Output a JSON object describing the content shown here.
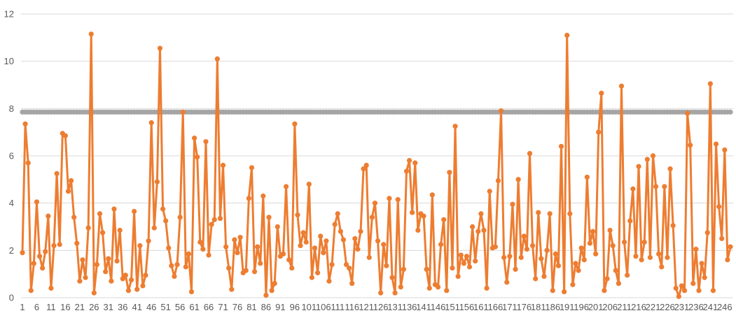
{
  "chart_data": {
    "type": "line",
    "title": "",
    "xlabel": "",
    "ylabel": "",
    "ylim": [
      0,
      12
    ],
    "y_ticks": [
      0,
      2,
      4,
      6,
      8,
      10,
      12
    ],
    "x_range": [
      1,
      249
    ],
    "x_tick_start": 1,
    "x_tick_step": 5,
    "grid": "horizontal",
    "legend": "none",
    "colors": {
      "series": "#ED7D31",
      "threshold": "#A5A5A5",
      "grid": "#D9D9D9",
      "text": "#595959"
    },
    "series": [
      {
        "values": [
          1.9,
          7.35,
          5.7,
          0.3,
          1.45,
          4.05,
          1.75,
          1.25,
          1.95,
          3.45,
          0.4,
          2.2,
          5.25,
          2.25,
          6.95,
          6.85,
          4.5,
          4.95,
          3.4,
          2.3,
          0.7,
          1.6,
          0.85,
          2.95,
          11.15,
          0.2,
          1.4,
          3.55,
          2.75,
          1.1,
          1.65,
          0.7,
          3.75,
          1.55,
          2.85,
          0.8,
          0.95,
          0.3,
          0.75,
          3.65,
          0.35,
          2.2,
          0.5,
          0.95,
          2.4,
          7.4,
          2.95,
          4.9,
          10.55,
          3.75,
          3.25,
          2.1,
          1.35,
          0.9,
          1.4,
          3.4,
          7.85,
          1.3,
          1.85,
          0.25,
          6.75,
          5.95,
          2.35,
          2.05,
          6.6,
          1.8,
          3.1,
          3.3,
          10.1,
          3.35,
          5.6,
          2.15,
          1.25,
          0.35,
          2.45,
          1.9,
          2.55,
          1.05,
          1.15,
          4.2,
          5.5,
          1.1,
          2.15,
          1.45,
          4.3,
          0.1,
          3.4,
          0.3,
          0.6,
          3.0,
          1.75,
          1.85,
          4.7,
          1.6,
          1.25,
          7.35,
          3.5,
          2.2,
          2.75,
          2.35,
          4.8,
          0.85,
          2.1,
          1.05,
          2.6,
          1.9,
          2.4,
          0.7,
          1.4,
          3.1,
          3.55,
          2.8,
          2.45,
          1.4,
          1.25,
          0.6,
          2.5,
          2.05,
          2.8,
          5.45,
          5.6,
          1.7,
          3.4,
          4.0,
          2.4,
          0.2,
          2.25,
          1.35,
          4.2,
          0.85,
          0.2,
          4.15,
          0.45,
          1.2,
          5.35,
          5.8,
          3.6,
          5.7,
          2.85,
          3.55,
          3.45,
          1.2,
          0.4,
          4.35,
          0.55,
          0.45,
          2.25,
          3.3,
          0.3,
          5.3,
          1.25,
          7.25,
          0.9,
          1.8,
          1.45,
          1.75,
          1.3,
          3.0,
          1.55,
          2.8,
          3.55,
          2.85,
          0.4,
          4.5,
          2.1,
          2.15,
          4.95,
          7.9,
          1.7,
          0.65,
          1.75,
          3.95,
          1.2,
          5.0,
          1.7,
          2.6,
          2.05,
          6.1,
          2.2,
          0.8,
          3.6,
          1.65,
          0.9,
          2.0,
          3.55,
          0.3,
          1.85,
          1.35,
          6.4,
          0.25,
          11.1,
          3.55,
          0.55,
          1.45,
          1.15,
          2.1,
          1.6,
          5.1,
          2.3,
          2.8,
          1.85,
          7.0,
          8.65,
          0.3,
          0.8,
          2.85,
          2.2,
          1.15,
          0.6,
          8.95,
          2.35,
          0.95,
          3.25,
          4.6,
          1.75,
          5.55,
          1.6,
          2.35,
          5.85,
          1.7,
          6.0,
          4.7,
          1.85,
          1.3,
          4.7,
          1.7,
          5.45,
          3.05,
          0.4,
          0.05,
          0.5,
          0.3,
          7.8,
          6.45,
          0.6,
          2.05,
          0.3,
          1.45,
          0.85,
          2.75,
          9.05,
          0.3,
          6.5,
          3.85,
          2.5,
          6.25,
          1.6,
          2.15
        ]
      },
      {
        "constant": 7.85
      }
    ]
  }
}
